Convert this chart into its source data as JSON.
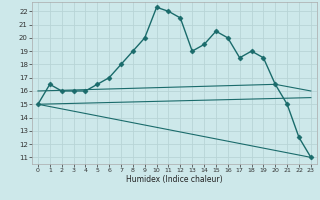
{
  "title": "",
  "xlabel": "Humidex (Indice chaleur)",
  "background_color": "#cde8ea",
  "grid_color": "#b8d4d6",
  "line_color": "#1a6b6b",
  "xlim": [
    -0.5,
    23.5
  ],
  "ylim": [
    10.5,
    22.7
  ],
  "yticks": [
    11,
    12,
    13,
    14,
    15,
    16,
    17,
    18,
    19,
    20,
    21,
    22
  ],
  "xticks": [
    0,
    1,
    2,
    3,
    4,
    5,
    6,
    7,
    8,
    9,
    10,
    11,
    12,
    13,
    14,
    15,
    16,
    17,
    18,
    19,
    20,
    21,
    22,
    23
  ],
  "series": [
    {
      "x": [
        0,
        1,
        2,
        3,
        4,
        5,
        6,
        7,
        8,
        9,
        10,
        11,
        12,
        13,
        14,
        15,
        16,
        17,
        18,
        19,
        20,
        21,
        22,
        23
      ],
      "y": [
        15,
        16.5,
        16,
        16,
        16,
        16.5,
        17,
        18,
        19,
        20,
        22.3,
        22,
        21.5,
        19,
        19.5,
        20.5,
        20,
        18.5,
        19,
        18.5,
        16.5,
        15,
        12.5,
        11
      ],
      "marker": "D",
      "markersize": 2.5,
      "linewidth": 1.0
    },
    {
      "x": [
        0,
        23
      ],
      "y": [
        15,
        11
      ],
      "marker": null,
      "linewidth": 0.8
    },
    {
      "x": [
        0,
        23
      ],
      "y": [
        15,
        15.5
      ],
      "marker": null,
      "linewidth": 0.8
    },
    {
      "x": [
        0,
        20,
        23
      ],
      "y": [
        16,
        16.5,
        16
      ],
      "marker": null,
      "linewidth": 0.8
    }
  ]
}
